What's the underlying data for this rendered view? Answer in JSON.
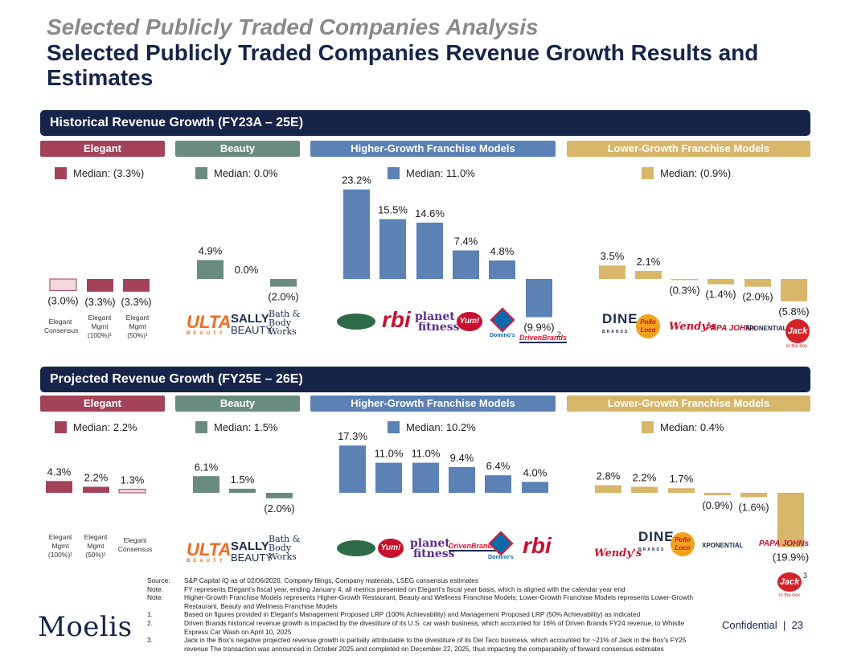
{
  "header": {
    "title": "Selected Publicly Traded Companies Analysis",
    "subtitle": "Selected Publicly Traded Companies Revenue Growth Results and Estimates"
  },
  "colors": {
    "elegant": "#a3435a",
    "beauty": "#6a8c7e",
    "higher_growth": "#5b81b5",
    "lower_growth": "#d8b66a",
    "navy": "#16244a",
    "elegant_light": "#f2d7dd"
  },
  "categories": [
    "Elegant",
    "Beauty",
    "Higher-Growth Franchise Models",
    "Lower-Growth Franchise Models"
  ],
  "chart_data": [
    {
      "type": "bar",
      "title": "Historical Revenue Growth (FY23A – 25E)",
      "medians": [
        "Median: (3.3%)",
        "Median: 0.0%",
        "Median: 11.0%",
        "Median: (0.9%)"
      ],
      "groups": [
        {
          "group": "Elegant",
          "categories": [
            "Elegant Consensus",
            "Elegant Mgmt (100%)¹",
            "Elegant Mgmt (50%)¹"
          ],
          "values": [
            -3.0,
            -3.3,
            -3.3
          ],
          "labels": [
            "(3.0%)",
            "(3.3%)",
            "(3.3%)"
          ]
        },
        {
          "group": "Beauty",
          "categories": [
            "Ulta Beauty",
            "Sally Beauty",
            "Bath & Body Works"
          ],
          "values": [
            4.9,
            0.0,
            -2.0
          ],
          "labels": [
            "4.9%",
            "0.0%",
            "(2.0%)"
          ]
        },
        {
          "group": "Higher-Growth Franchise Models",
          "categories": [
            "Wingstop",
            "RBI",
            "Planet Fitness",
            "Yum!",
            "Domino's",
            "Driven Brands"
          ],
          "values": [
            23.2,
            15.5,
            14.6,
            7.4,
            4.8,
            -9.9
          ],
          "labels": [
            "23.2%",
            "15.5%",
            "14.6%",
            "7.4%",
            "4.8%",
            "(9.9%)"
          ]
        },
        {
          "group": "Lower-Growth Franchise Models",
          "categories": [
            "Dine Brands",
            "Pollo Loco",
            "Wendy's",
            "Papa John's",
            "Xponential",
            "Jack in the Box"
          ],
          "values": [
            3.5,
            2.1,
            -0.3,
            -1.4,
            -2.0,
            -5.8
          ],
          "labels": [
            "3.5%",
            "2.1%",
            "(0.3%)",
            "(1.4%)",
            "(2.0%)",
            "(5.8%)"
          ]
        }
      ]
    },
    {
      "type": "bar",
      "title": "Projected Revenue Growth (FY25E – 26E)",
      "medians": [
        "Median: 2.2%",
        "Median: 1.5%",
        "Median: 10.2%",
        "Median: 0.4%"
      ],
      "groups": [
        {
          "group": "Elegant",
          "categories": [
            "Elegant Mgmt (100%)¹",
            "Elegant Mgmt (50%)¹",
            "Elegant Consensus"
          ],
          "values": [
            4.3,
            2.2,
            1.3
          ],
          "labels": [
            "4.3%",
            "2.2%",
            "1.3%"
          ]
        },
        {
          "group": "Beauty",
          "categories": [
            "Ulta Beauty",
            "Sally Beauty",
            "Bath & Body Works"
          ],
          "values": [
            6.1,
            1.5,
            -2.0
          ],
          "labels": [
            "6.1%",
            "1.5%",
            "(2.0%)"
          ]
        },
        {
          "group": "Higher-Growth Franchise Models",
          "categories": [
            "Wingstop",
            "Yum!",
            "Planet Fitness",
            "Driven Brands",
            "Domino's",
            "RBI"
          ],
          "values": [
            17.3,
            11.0,
            11.0,
            9.4,
            6.4,
            4.0
          ],
          "labels": [
            "17.3%",
            "11.0%",
            "11.0%",
            "9.4%",
            "6.4%",
            "4.0%"
          ]
        },
        {
          "group": "Lower-Growth Franchise Models",
          "categories": [
            "Wendy's",
            "Dine Brands",
            "Pollo Loco",
            "Xponential",
            "Papa John's",
            "Jack in the Box"
          ],
          "values": [
            2.8,
            2.2,
            1.7,
            -0.9,
            -1.6,
            -19.9
          ],
          "labels": [
            "2.8%",
            "2.2%",
            "1.7%",
            "(0.9%)",
            "(1.6%)",
            "(19.9%)"
          ]
        }
      ]
    }
  ],
  "elegant_labels": {
    "consensus": "Elegant Consensus",
    "mgmt100": "Elegant Mgmt (100%)¹",
    "mgmt50": "Elegant Mgmt (50%)¹"
  },
  "logos": {
    "ulta": "ULTA",
    "ulta_sub": "BEAUTY",
    "sally": "SALLY",
    "sally_sub": "BEAUTY",
    "bbw": "Bath & Body Works",
    "rbi": "rbi",
    "planet": "planet",
    "planet_sub": "fitness",
    "yum": "Yum!",
    "dominos": "Domino's",
    "driven": "DrivenBrands",
    "dine": "DINE",
    "dine_sub": "BRANDS",
    "pollo": "Pollo Loco",
    "wendys": "Wendy's",
    "papa": "PAPA JOHNs",
    "xpo": "XPONENTIAL",
    "jack": "Jack",
    "jack_sub": "in the box",
    "note2": "2",
    "note3": "3"
  },
  "footnotes": [
    {
      "k": "Source:",
      "v": "S&P Capital IQ as of 02/06/2026, Company filings, Company materials, LSEG consensus estimates"
    },
    {
      "k": "Note:",
      "v": "FY represents Elegant's fiscal year, ending January 4; all metrics presented on Elegant's fiscal year basis, which is aligned with the calendar year end"
    },
    {
      "k": "Note:",
      "v": "Higher-Growth Franchise Models represents Higher-Growth Restaurant, Beauty and Wellness Franchise Models; Lower-Growth Franchise Models represents Lower-Growth Restaurant, Beauty and Wellness Franchise Models"
    },
    {
      "k": "1.",
      "v": "Based on figures provided in Elegant's Management Proposed LRP (100% Achievability) and Management Proposed LRP (50% Achievability) as indicated"
    },
    {
      "k": "2.",
      "v": "Driven Brands historical revenue growth is impacted by the divestiture of its U.S. car wash business, which accounted for 16% of Driven Brands FY24 revenue, to Whistle Express Car Wash on April 10, 2025"
    },
    {
      "k": "3.",
      "v": "Jack in the Box's negative projected revenue growth is partially attributable to the divestiture of its Del Taco business, which accounted for ~21% of Jack in the Box's FY25 revenue The transaction was announced in October 2025 and completed on December 22, 2025, thus impacting the comparability of forward consensus estimates"
    }
  ],
  "footer": {
    "brand": "Moelis",
    "confidential": "Confidential",
    "separator": "|",
    "page": "23"
  }
}
